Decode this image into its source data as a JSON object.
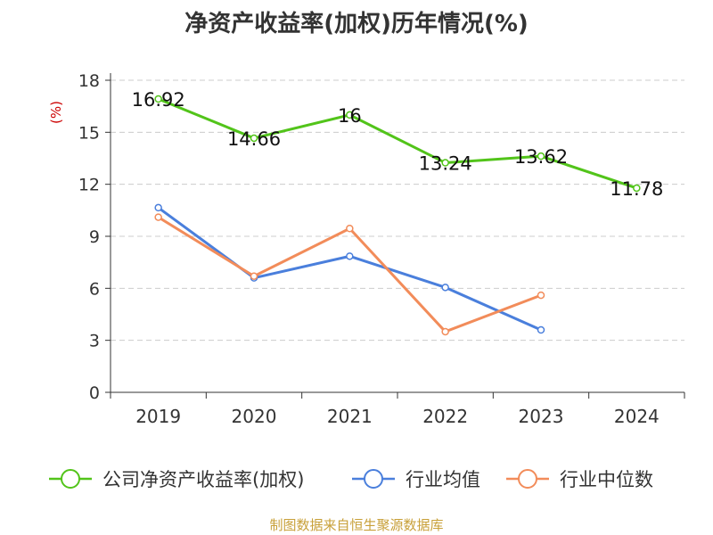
{
  "chart_data": {
    "type": "line",
    "title": "净资产收益率(加权)历年情况(%)",
    "ylabel": "(%)",
    "xlabel": "",
    "categories": [
      "2019",
      "2020",
      "2021",
      "2022",
      "2023",
      "2024"
    ],
    "ylim": [
      0,
      18
    ],
    "yticks": [
      0,
      3,
      6,
      9,
      12,
      15,
      18
    ],
    "grid": "horizontal-dashed",
    "legend_position": "bottom",
    "series": [
      {
        "name": "公司净资产收益率(加权)",
        "color": "#52c41a",
        "values": [
          16.92,
          14.66,
          16,
          13.24,
          13.62,
          11.78
        ],
        "labels": [
          "16.92",
          "14.66",
          "16",
          "13.24",
          "13.62",
          "11.78"
        ]
      },
      {
        "name": "行业均值",
        "color": "#4a7fdc",
        "values": [
          10.65,
          6.6,
          7.85,
          6.05,
          3.6,
          null
        ]
      },
      {
        "name": "行业中位数",
        "color": "#f28c5a",
        "values": [
          10.1,
          6.7,
          9.45,
          3.5,
          5.6,
          null
        ]
      }
    ]
  },
  "source": "制图数据来自恒生聚源数据库"
}
